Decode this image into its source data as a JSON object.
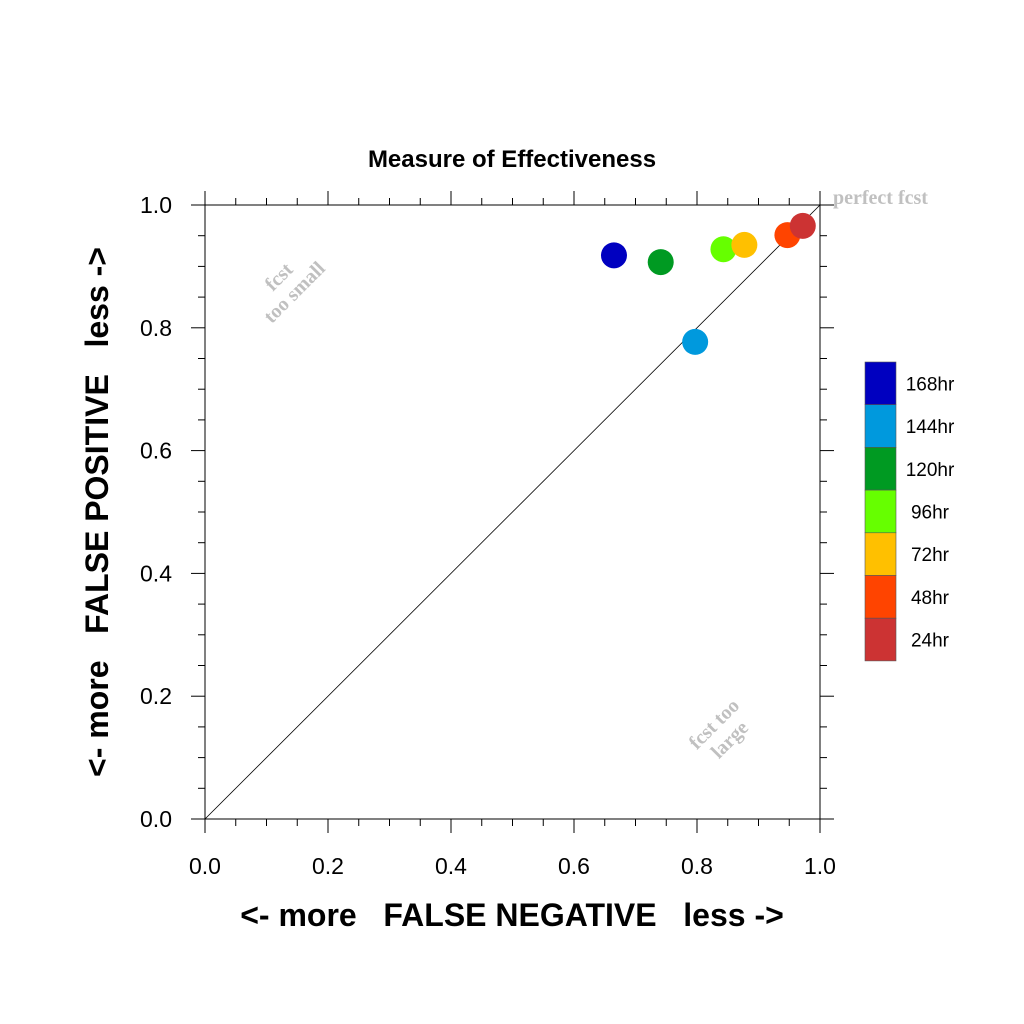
{
  "chart_data": {
    "type": "scatter",
    "title": "Measure of Effectiveness",
    "xlabel": "<- more   FALSE NEGATIVE   less ->",
    "ylabel": "<- more   FALSE POSITIVE   less ->",
    "xlim": [
      0.0,
      1.0
    ],
    "ylim": [
      0.0,
      1.0
    ],
    "x_ticks": [
      "0.0",
      "0.2",
      "0.4",
      "0.6",
      "0.8",
      "1.0"
    ],
    "y_ticks": [
      "0.0",
      "0.2",
      "0.4",
      "0.6",
      "0.8",
      "1.0"
    ],
    "x_tick_values": [
      0,
      0.2,
      0.4,
      0.6,
      0.8,
      1.0
    ],
    "y_tick_values": [
      0,
      0.2,
      0.4,
      0.6,
      0.8,
      1.0
    ],
    "diagonal": true,
    "grid": false,
    "legend_position": "right",
    "annotations": {
      "perfect": "perfect fcst",
      "too_small_line1": "fcst",
      "too_small_line2": "too small",
      "too_large_line1": "fcst too",
      "too_large_line2": "large"
    },
    "series": [
      {
        "name": "168hr",
        "color": "#0000c0",
        "x": 0.665,
        "y": 0.918
      },
      {
        "name": "144hr",
        "color": "#0099dd",
        "x": 0.797,
        "y": 0.777
      },
      {
        "name": "120hr",
        "color": "#009a22",
        "x": 0.741,
        "y": 0.907
      },
      {
        "name": "96hr",
        "color": "#66ff00",
        "x": 0.843,
        "y": 0.928
      },
      {
        "name": "72hr",
        "color": "#ffc000",
        "x": 0.877,
        "y": 0.935
      },
      {
        "name": "48hr",
        "color": "#ff4400",
        "x": 0.947,
        "y": 0.951
      },
      {
        "name": "24hr",
        "color": "#cc3333",
        "x": 0.972,
        "y": 0.966
      }
    ]
  }
}
